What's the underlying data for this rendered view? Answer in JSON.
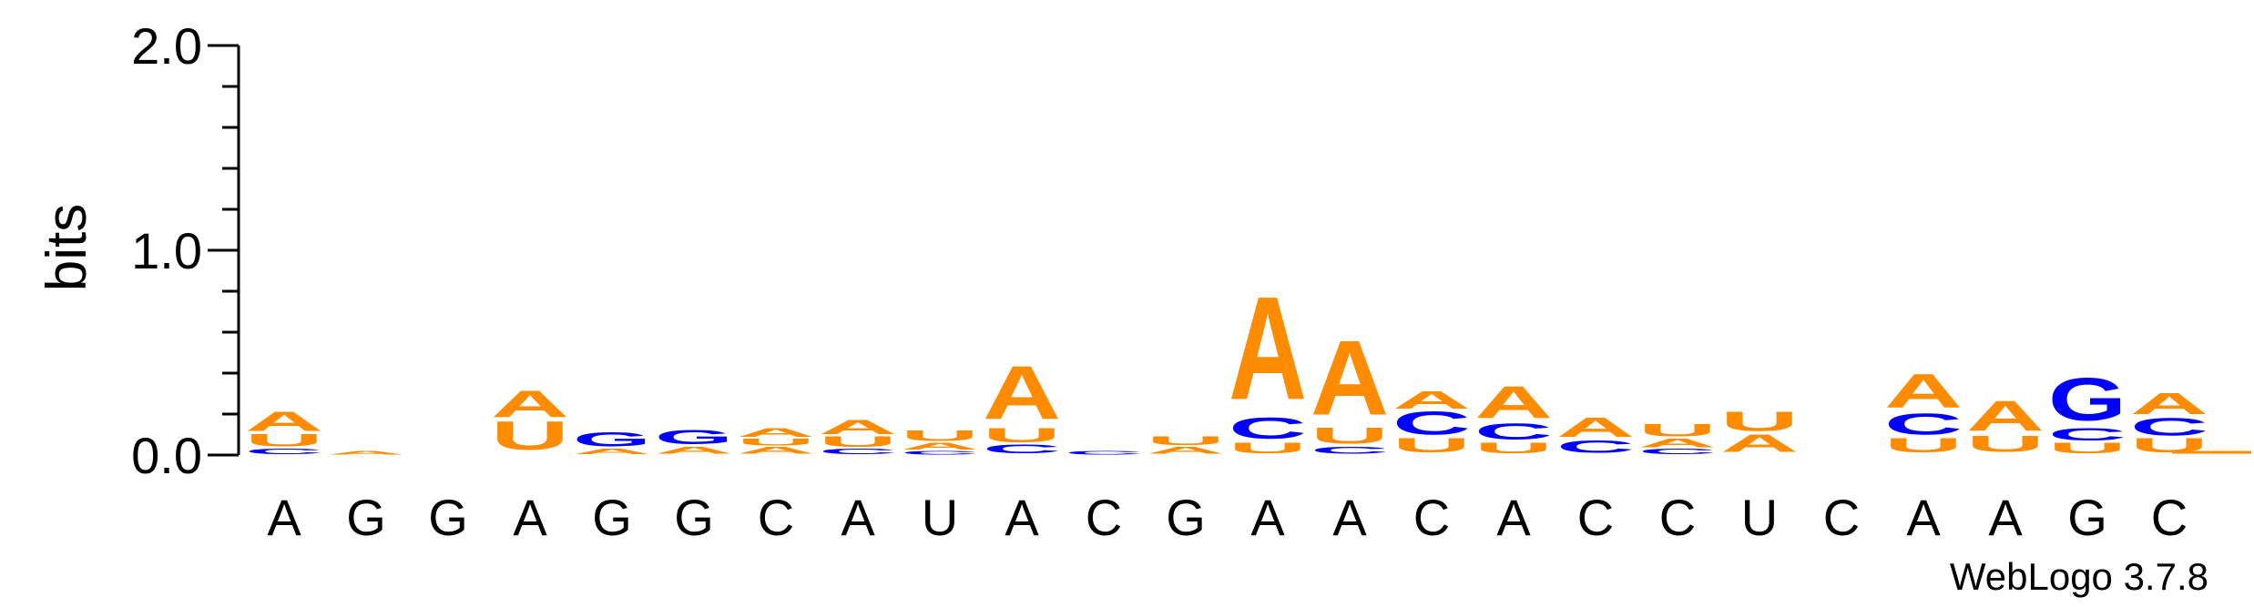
{
  "chart_data": {
    "type": "sequence-logo",
    "ylabel": "bits",
    "ylim": [
      0,
      2.0
    ],
    "yticks": [
      "0.0",
      "1.0",
      "2.0"
    ],
    "x_labels": [
      "A",
      "G",
      "G",
      "A",
      "G",
      "G",
      "C",
      "A",
      "U",
      "A",
      "C",
      "G",
      "A",
      "A",
      "C",
      "A",
      "C",
      "C",
      "U",
      "C",
      "A",
      "A",
      "G",
      "C"
    ],
    "colors": {
      "A": "#ff8c00",
      "U": "#ff8c00",
      "C": "#0000ff",
      "G": "#0000ff"
    },
    "positions": [
      {
        "stack": [
          [
            "C",
            0.03
          ],
          [
            "U",
            0.07
          ],
          [
            "A",
            0.11
          ]
        ]
      },
      {
        "stack": [
          [
            "A",
            0.02
          ]
        ]
      },
      {
        "stack": []
      },
      {
        "stack": [
          [
            "U",
            0.16
          ],
          [
            "A",
            0.15
          ]
        ]
      },
      {
        "stack": [
          [
            "A",
            0.03
          ],
          [
            "G",
            0.08
          ]
        ]
      },
      {
        "stack": [
          [
            "A",
            0.04
          ],
          [
            "G",
            0.08
          ]
        ]
      },
      {
        "stack": [
          [
            "A",
            0.04
          ],
          [
            "U",
            0.04
          ],
          [
            "A",
            0.05
          ]
        ]
      },
      {
        "stack": [
          [
            "C",
            0.03
          ],
          [
            "U",
            0.06
          ],
          [
            "A",
            0.08
          ]
        ]
      },
      {
        "stack": [
          [
            "C",
            0.02
          ],
          [
            "A",
            0.04
          ],
          [
            "U",
            0.06
          ]
        ]
      },
      {
        "stack": [
          [
            "C",
            0.05
          ],
          [
            "U",
            0.08
          ],
          [
            "A",
            0.3
          ]
        ]
      },
      {
        "stack": [
          [
            "C",
            0.02
          ]
        ]
      },
      {
        "stack": [
          [
            "A",
            0.04
          ],
          [
            "U",
            0.05
          ]
        ]
      },
      {
        "stack": [
          [
            "U",
            0.06
          ],
          [
            "C",
            0.12
          ],
          [
            "A",
            0.58
          ]
        ]
      },
      {
        "stack": [
          [
            "C",
            0.04
          ],
          [
            "U",
            0.09
          ],
          [
            "A",
            0.42
          ]
        ]
      },
      {
        "stack": [
          [
            "U",
            0.08
          ],
          [
            "C",
            0.13
          ],
          [
            "A",
            0.1
          ]
        ]
      },
      {
        "stack": [
          [
            "U",
            0.06
          ],
          [
            "C",
            0.09
          ],
          [
            "A",
            0.18
          ]
        ]
      },
      {
        "stack": [
          [
            "C",
            0.07
          ],
          [
            "A",
            0.11
          ]
        ]
      },
      {
        "stack": [
          [
            "C",
            0.03
          ],
          [
            "A",
            0.05
          ],
          [
            "U",
            0.07
          ]
        ]
      },
      {
        "stack": [
          [
            "A",
            0.1
          ],
          [
            "U",
            0.11
          ]
        ]
      },
      {
        "stack": []
      },
      {
        "stack": [
          [
            "U",
            0.08
          ],
          [
            "C",
            0.12
          ],
          [
            "A",
            0.19
          ]
        ]
      },
      {
        "stack": [
          [
            "U",
            0.09
          ],
          [
            "A",
            0.17
          ]
        ]
      },
      {
        "stack": [
          [
            "U",
            0.06
          ],
          [
            "C",
            0.07
          ],
          [
            "G",
            0.24
          ]
        ]
      },
      {
        "stack": [
          [
            "U",
            0.08
          ],
          [
            "C",
            0.1
          ],
          [
            "A",
            0.12
          ]
        ]
      }
    ],
    "footer": "WebLogo 3.7.8"
  }
}
